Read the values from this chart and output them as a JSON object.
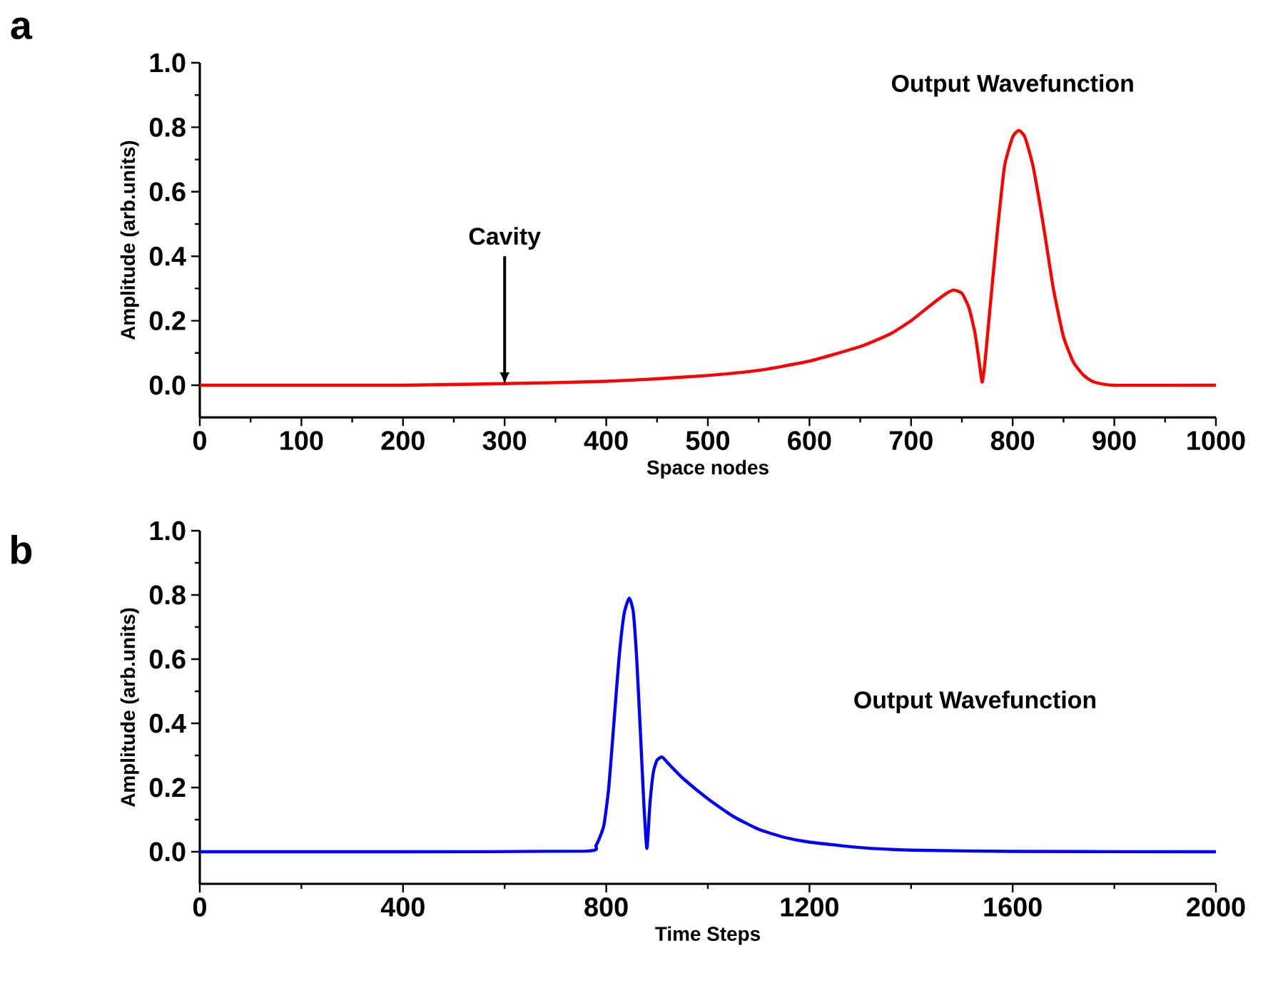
{
  "chart_data": [
    {
      "type": "line",
      "xlabel": "Space nodes",
      "ylabel": "Amplitude (arb.units)",
      "xlim": [
        0,
        1000
      ],
      "ylim": [
        -0.1,
        1.0
      ],
      "xticks": [
        0,
        100,
        200,
        300,
        400,
        500,
        600,
        700,
        800,
        900,
        1000
      ],
      "yticks": [
        {
          "value": 0,
          "label": "0.0"
        },
        {
          "value": 0.2,
          "label": "0.2"
        },
        {
          "value": 0.4,
          "label": "0.4"
        },
        {
          "value": 0.6,
          "label": "0.6"
        },
        {
          "value": 0.8,
          "label": "0.8"
        },
        {
          "value": 1.0,
          "label": "1.0"
        }
      ],
      "annotations": [
        "a",
        {
          "text": "Cavity",
          "x": 300,
          "y": 0
        },
        "Output Wavefunction"
      ],
      "x": [
        0,
        100,
        200,
        300,
        350,
        400,
        450,
        500,
        550,
        600,
        650,
        680,
        700,
        720,
        735,
        742,
        750,
        757,
        763,
        768,
        770,
        773,
        778,
        785,
        792,
        800,
        806,
        812,
        820,
        830,
        840,
        850,
        860,
        870,
        880,
        900,
        1000
      ],
      "series": [
        {
          "color": "#ff0000",
          "values": [
            0,
            0,
            0,
            0.005,
            0.008,
            0.012,
            0.02,
            0.03,
            0.046,
            0.075,
            0.12,
            0.16,
            0.2,
            0.25,
            0.285,
            0.295,
            0.285,
            0.24,
            0.16,
            0.05,
            0.01,
            0.08,
            0.25,
            0.48,
            0.68,
            0.77,
            0.79,
            0.77,
            0.68,
            0.5,
            0.3,
            0.15,
            0.07,
            0.03,
            0.01,
            0.0,
            0.0
          ]
        }
      ]
    },
    {
      "type": "line",
      "xlabel": "Time Steps",
      "ylabel": "Amplitude (arb.units)",
      "xlim": [
        0,
        2000
      ],
      "ylim": [
        -0.1,
        1.0
      ],
      "xticks": [
        0,
        400,
        800,
        1200,
        1600,
        2000
      ],
      "yticks": [
        {
          "value": 0,
          "label": "0.0"
        },
        {
          "value": 0.2,
          "label": "0.2"
        },
        {
          "value": 0.4,
          "label": "0.4"
        },
        {
          "value": 0.6,
          "label": "0.6"
        },
        {
          "value": 0.8,
          "label": "0.8"
        },
        {
          "value": 1.0,
          "label": "1.0"
        }
      ],
      "annotations": [
        "b",
        "Output Wavefunction"
      ],
      "x": [
        0,
        400,
        760,
        780,
        795,
        805,
        815,
        825,
        835,
        845,
        853,
        860,
        867,
        874,
        880,
        886,
        893,
        900,
        910,
        925,
        950,
        1000,
        1050,
        1100,
        1150,
        1200,
        1300,
        1400,
        1600,
        2000
      ],
      "series": [
        {
          "color": "#0000ff",
          "values": [
            0,
            0,
            0.002,
            0.02,
            0.08,
            0.2,
            0.4,
            0.6,
            0.74,
            0.79,
            0.75,
            0.6,
            0.38,
            0.15,
            0.01,
            0.15,
            0.25,
            0.285,
            0.295,
            0.27,
            0.23,
            0.165,
            0.11,
            0.07,
            0.045,
            0.03,
            0.013,
            0.005,
            0.001,
            0.0
          ]
        }
      ]
    }
  ]
}
